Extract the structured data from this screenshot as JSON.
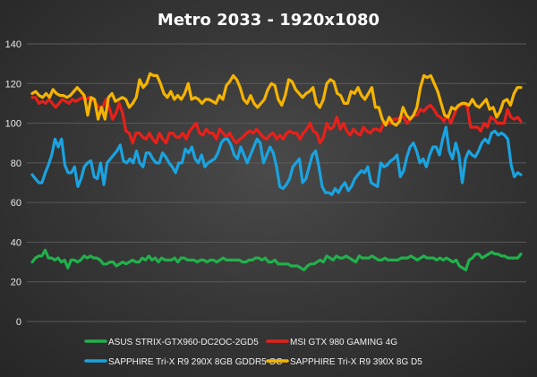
{
  "chart_data": {
    "type": "line",
    "title": "Metro 2033 - 1920x1080",
    "xlabel": "",
    "ylabel": "",
    "ylim": [
      0,
      140
    ],
    "yticks": [
      0,
      20,
      40,
      60,
      80,
      100,
      120,
      140
    ],
    "grid": true,
    "legend_position": "bottom",
    "series": [
      {
        "name": "ASUS STRIX-GTX960-DC2OC-2GD5",
        "color": "#22b04b",
        "values": [
          30,
          32,
          33,
          33,
          36,
          32,
          32,
          31,
          32,
          30,
          31,
          27,
          31,
          31,
          30,
          31,
          33,
          32,
          33,
          32,
          32,
          31,
          29,
          29,
          30,
          30,
          28,
          29,
          30,
          29,
          30,
          31,
          30,
          30,
          32,
          31,
          33,
          31,
          32,
          30,
          32,
          31,
          31,
          31,
          32,
          30,
          32,
          32,
          31,
          31,
          31,
          30,
          31,
          31,
          30,
          31,
          31,
          30,
          31,
          32,
          31,
          31,
          31,
          31,
          31,
          30,
          30,
          31,
          31,
          32,
          32,
          31,
          32,
          30,
          30,
          31,
          29,
          29,
          29,
          29,
          28,
          28,
          28,
          27,
          26,
          28,
          29,
          29,
          30,
          31,
          30,
          33,
          32,
          31,
          33,
          32,
          32,
          33,
          32,
          31,
          30,
          33,
          32,
          32,
          32,
          33,
          32,
          31,
          31,
          32,
          31,
          31,
          31,
          31,
          32,
          32,
          32,
          33,
          32,
          31,
          32,
          33,
          32,
          32,
          32,
          31,
          32,
          31,
          32,
          31,
          30,
          31,
          28,
          27,
          26,
          31,
          32,
          34,
          34,
          32,
          33,
          34,
          35,
          34,
          34,
          33,
          33,
          32,
          32,
          32,
          32,
          34
        ]
      },
      {
        "name": "MSI GTX 980 GAMING 4G",
        "color": "#e8201a",
        "values": [
          113,
          113,
          110,
          111,
          110,
          112,
          110,
          108,
          110,
          112,
          111,
          110,
          112,
          111,
          112,
          113,
          112,
          113,
          112,
          110,
          108,
          108,
          112,
          108,
          102,
          105,
          110,
          105,
          96,
          95,
          90,
          95,
          95,
          93,
          92,
          95,
          92,
          90,
          95,
          92,
          90,
          95,
          95,
          93,
          93,
          95,
          92,
          96,
          98,
          100,
          95,
          94,
          97,
          95,
          95,
          92,
          97,
          95,
          93,
          95,
          92,
          90,
          92,
          93,
          95,
          96,
          95,
          97,
          95,
          93,
          92,
          94,
          95,
          92,
          94,
          92,
          95,
          96,
          95,
          95,
          92,
          95,
          97,
          100,
          96,
          95,
          90,
          93,
          100,
          97,
          98,
          103,
          97,
          100,
          96,
          94,
          97,
          95,
          94,
          98,
          96,
          95,
          97,
          97,
          96,
          100,
          100,
          100,
          102,
          102,
          103,
          103,
          100,
          102,
          104,
          104,
          107,
          106,
          108,
          109,
          107,
          104,
          103,
          101,
          104,
          100,
          104,
          108,
          109,
          110,
          108,
          98,
          98,
          98,
          96,
          100,
          98,
          103,
          102,
          100,
          100,
          100,
          107,
          103,
          102,
          103,
          101
        ]
      },
      {
        "name": "SAPPHIRE Tri-X R9 290X 8GB GDDR5 OC",
        "color": "#1aa3e0",
        "values": [
          74,
          72,
          70,
          70,
          75,
          79,
          84,
          92,
          88,
          92,
          79,
          75,
          75,
          78,
          68,
          72,
          78,
          80,
          81,
          73,
          72,
          80,
          69,
          80,
          82,
          84,
          86,
          89,
          81,
          80,
          82,
          80,
          86,
          80,
          78,
          85,
          85,
          82,
          80,
          80,
          85,
          83,
          80,
          78,
          75,
          80,
          80,
          87,
          85,
          88,
          82,
          80,
          84,
          78,
          80,
          81,
          82,
          85,
          90,
          92,
          92,
          89,
          84,
          82,
          88,
          84,
          80,
          84,
          88,
          92,
          90,
          80,
          84,
          88,
          85,
          78,
          68,
          67,
          69,
          72,
          78,
          80,
          82,
          70,
          72,
          78,
          84,
          86,
          78,
          68,
          65,
          65,
          64,
          67,
          65,
          68,
          70,
          66,
          68,
          72,
          74,
          76,
          75,
          78,
          70,
          69,
          68,
          80,
          78,
          79,
          81,
          82,
          84,
          73,
          76,
          83,
          88,
          90,
          86,
          80,
          82,
          78,
          84,
          88,
          88,
          84,
          92,
          98,
          86,
          82,
          90,
          84,
          70,
          82,
          86,
          84,
          83,
          86,
          90,
          92,
          90,
          95,
          96,
          94,
          95,
          94,
          92,
          79,
          73,
          75,
          74
        ]
      },
      {
        "name": "SAPPHIRE Tri-X R9 390X 8G D5",
        "color": "#f5b400",
        "values": [
          115,
          116,
          114,
          113,
          115,
          113,
          117,
          115,
          114,
          114,
          113,
          114,
          116,
          118,
          116,
          114,
          104,
          113,
          112,
          102,
          108,
          102,
          113,
          115,
          111,
          112,
          113,
          112,
          108,
          110,
          113,
          122,
          118,
          120,
          125,
          124,
          124,
          120,
          115,
          113,
          116,
          112,
          114,
          112,
          115,
          120,
          112,
          113,
          112,
          110,
          112,
          112,
          111,
          110,
          114,
          112,
          119,
          121,
          124,
          122,
          118,
          112,
          110,
          114,
          110,
          108,
          110,
          112,
          117,
          120,
          119,
          112,
          109,
          114,
          122,
          121,
          117,
          115,
          113,
          115,
          116,
          118,
          110,
          108,
          112,
          120,
          122,
          121,
          115,
          114,
          110,
          110,
          116,
          115,
          118,
          114,
          112,
          115,
          118,
          108,
          108,
          102,
          99,
          103,
          100,
          99,
          101,
          108,
          104,
          102,
          104,
          108,
          118,
          124,
          123,
          124,
          120,
          116,
          110,
          104,
          103,
          108,
          107,
          109,
          110,
          110,
          109,
          112,
          109,
          108,
          110,
          112,
          107,
          108,
          103,
          106,
          111,
          112,
          109,
          115,
          118,
          118
        ]
      }
    ]
  }
}
